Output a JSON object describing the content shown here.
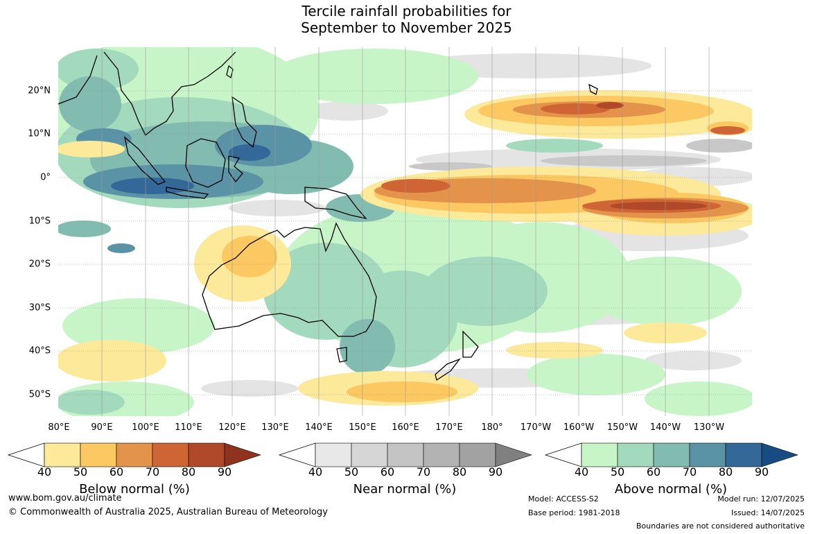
{
  "title_line1": "Tercile rainfall probabilities for",
  "title_line2": "September to November 2025",
  "lon_labels": [
    "80°E",
    "90°E",
    "100°E",
    "110°E",
    "120°E",
    "130°E",
    "140°E",
    "150°E",
    "160°E",
    "170°E",
    "180°",
    "170°W",
    "160°W",
    "150°W",
    "140°W",
    "130°W"
  ],
  "lat_labels": [
    "20°N",
    "10°N",
    "0°",
    "10°S",
    "20°S",
    "30°S",
    "40°S",
    "50°S"
  ],
  "colorbars": [
    {
      "title": "Below normal (%)",
      "ticks": [
        "40",
        "50",
        "60",
        "70",
        "80",
        "90"
      ],
      "colors": [
        "#fde99a",
        "#fcc861",
        "#e4934a",
        "#cf6434",
        "#b0492a",
        "#8f3320"
      ]
    },
    {
      "title": "Near normal (%)",
      "ticks": [
        "40",
        "50",
        "60",
        "70",
        "80",
        "90"
      ],
      "colors": [
        "#e8e8e8",
        "#d6d6d6",
        "#c4c4c4",
        "#b3b3b3",
        "#a2a2a2",
        "#808080"
      ]
    },
    {
      "title": "Above normal (%)",
      "ticks": [
        "40",
        "50",
        "60",
        "70",
        "80",
        "90"
      ],
      "colors": [
        "#c8f5c8",
        "#a3d9bd",
        "#82bcb0",
        "#5b93a6",
        "#336898",
        "#194b83"
      ]
    }
  ],
  "footer": {
    "url": "www.bom.gov.au/climate",
    "copyright": "© Commonwealth of Australia 2025, Australian Bureau of Meteorology",
    "model": "Model: ACCESS-S2",
    "base_period": "Base period: 1981-2018",
    "model_run": "Model run: 12/07/2025",
    "issued": "Issued: 14/07/2025",
    "disclaimer": "Boundaries are not considered authoritative"
  }
}
